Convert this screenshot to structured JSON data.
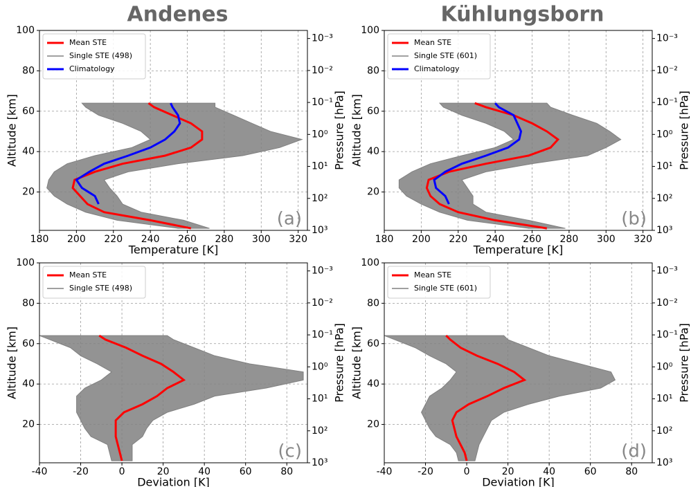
{
  "chart_data": [
    {
      "type": "line",
      "title": "Andenes",
      "annotation": "(a)",
      "xlabel": "Temperature [K]",
      "ylabel": "Altitude [km]",
      "y2label": "Pressure [hPa]",
      "xlim": [
        180,
        325
      ],
      "xticks": [
        180,
        200,
        220,
        240,
        260,
        280,
        300,
        320
      ],
      "ylim": [
        1,
        100
      ],
      "yticks": [
        20,
        40,
        60,
        80,
        100
      ],
      "y2lim": [
        1000,
        0.00056
      ],
      "y2log": true,
      "y2ticks": [
        {
          "value": 0.001,
          "label": "10⁻³"
        },
        {
          "value": 0.01,
          "label": "10⁻²"
        },
        {
          "value": 0.1,
          "label": "10⁻¹"
        },
        {
          "value": 1,
          "label": "10⁰"
        },
        {
          "value": 10,
          "label": "10¹"
        },
        {
          "value": 100,
          "label": "10²"
        },
        {
          "value": 1000,
          "label": "10³"
        }
      ],
      "grid": true,
      "legend": "upper left",
      "y": [
        2,
        6,
        10,
        14,
        18,
        22,
        26,
        30,
        34,
        38,
        42,
        46,
        50,
        54,
        58,
        62,
        64
      ],
      "series": [
        {
          "name": "Mean STE",
          "color": "#ff0000",
          "values": [
            262,
            240,
            215,
            206,
            202,
            198,
            199,
            210,
            225,
            248,
            262,
            268,
            268,
            262,
            252,
            242,
            239
          ]
        },
        {
          "name": "Single STE (498)",
          "color": "#808080",
          "values": [
            255,
            222,
            205,
            195,
            188,
            184,
            185,
            188,
            195,
            210,
            230,
            240,
            235,
            225,
            212,
            205,
            203
          ],
          "values_upper": [
            272,
            258,
            235,
            225,
            222,
            218,
            215,
            228,
            255,
            290,
            310,
            322,
            305,
            295,
            285,
            275,
            275
          ]
        },
        {
          "name": "Climatology",
          "color": "#0000ff",
          "values": [
            null,
            null,
            null,
            212,
            210,
            203,
            200,
            207,
            215,
            228,
            240,
            248,
            253,
            256,
            255,
            252,
            251
          ]
        }
      ]
    },
    {
      "type": "line",
      "title": "Kühlungsborn",
      "annotation": "(b)",
      "xlabel": "Temperature [K]",
      "ylabel": "Altitude [km]",
      "y2label": "Pressure [hPa]",
      "xlim": [
        180,
        325
      ],
      "xticks": [
        180,
        200,
        220,
        240,
        260,
        280,
        300,
        320
      ],
      "ylim": [
        1,
        100
      ],
      "yticks": [
        20,
        40,
        60,
        80,
        100
      ],
      "y2lim": [
        1000,
        0.00056
      ],
      "y2log": true,
      "y2ticks": [
        {
          "value": 0.001,
          "label": "10⁻³"
        },
        {
          "value": 0.01,
          "label": "10⁻²"
        },
        {
          "value": 0.1,
          "label": "10⁻¹"
        },
        {
          "value": 1,
          "label": "10⁰"
        },
        {
          "value": 10,
          "label": "10¹"
        },
        {
          "value": 100,
          "label": "10²"
        },
        {
          "value": 1000,
          "label": "10³"
        }
      ],
      "grid": true,
      "legend": "upper left",
      "y": [
        2,
        6,
        10,
        14,
        18,
        22,
        26,
        30,
        34,
        38,
        42,
        46,
        50,
        54,
        58,
        62,
        64
      ],
      "series": [
        {
          "name": "Mean STE",
          "color": "#ff0000",
          "values": [
            268,
            240,
            220,
            210,
            205,
            203,
            204,
            215,
            235,
            258,
            270,
            274,
            268,
            260,
            250,
            235,
            229
          ]
        },
        {
          "name": "Single STE (601)",
          "color": "#808080",
          "values": [
            258,
            225,
            210,
            200,
            192,
            188,
            188,
            195,
            205,
            222,
            240,
            250,
            245,
            235,
            222,
            212,
            210
          ],
          "values_upper": [
            278,
            258,
            235,
            228,
            228,
            225,
            222,
            235,
            260,
            290,
            300,
            308,
            302,
            295,
            282,
            270,
            268
          ]
        },
        {
          "name": "Climatology",
          "color": "#0000ff",
          "values": [
            null,
            null,
            null,
            215,
            213,
            208,
            207,
            213,
            222,
            235,
            247,
            253,
            254,
            252,
            250,
            242,
            240
          ]
        }
      ]
    },
    {
      "type": "line",
      "annotation": "(c)",
      "xlabel": "Deviation [K]",
      "ylabel": "Altitude [km]",
      "y2label": "Pressure [hPa]",
      "xlim": [
        -40,
        90
      ],
      "xticks": [
        -40,
        -20,
        0,
        20,
        40,
        60,
        80
      ],
      "ylim": [
        1,
        100
      ],
      "yticks": [
        20,
        40,
        60,
        80,
        100
      ],
      "y2lim": [
        1000,
        0.00056
      ],
      "y2log": true,
      "y2ticks": [
        {
          "value": 0.001,
          "label": "10⁻³"
        },
        {
          "value": 0.01,
          "label": "10⁻²"
        },
        {
          "value": 0.1,
          "label": "10⁻¹"
        },
        {
          "value": 1,
          "label": "10⁰"
        },
        {
          "value": 10,
          "label": "10¹"
        },
        {
          "value": 100,
          "label": "10²"
        },
        {
          "value": 1000,
          "label": "10³"
        }
      ],
      "grid": true,
      "legend": "upper left",
      "y": [
        2,
        6,
        10,
        14,
        18,
        22,
        26,
        30,
        34,
        38,
        42,
        46,
        50,
        54,
        58,
        62,
        64
      ],
      "series": [
        {
          "name": "Mean STE",
          "color": "#ff0000",
          "values": [
            0,
            -1,
            -2,
            -3,
            -3,
            -3,
            1,
            10,
            17,
            22,
            30,
            25,
            19,
            10,
            2,
            -8,
            -11
          ]
        },
        {
          "name": "Single STE (498)",
          "color": "#808080",
          "values": [
            -5,
            -6,
            -7,
            -15,
            -18,
            -20,
            -22,
            -22,
            -22,
            -18,
            -10,
            -5,
            -12,
            -20,
            -25,
            -35,
            -40
          ],
          "values_upper": [
            5,
            5,
            5,
            10,
            12,
            15,
            22,
            35,
            45,
            70,
            88,
            88,
            62,
            45,
            35,
            25,
            22
          ]
        }
      ]
    },
    {
      "type": "line",
      "annotation": "(d)",
      "xlabel": "Deviation [K]",
      "ylabel": "Altitude [km]",
      "y2label": "Pressure [hPa]",
      "xlim": [
        -40,
        90
      ],
      "xticks": [
        -40,
        -20,
        0,
        20,
        40,
        60,
        80
      ],
      "ylim": [
        1,
        100
      ],
      "yticks": [
        20,
        40,
        60,
        80,
        100
      ],
      "y2lim": [
        1000,
        0.00056
      ],
      "y2log": true,
      "y2ticks": [
        {
          "value": 0.001,
          "label": "10⁻³"
        },
        {
          "value": 0.01,
          "label": "10⁻²"
        },
        {
          "value": 0.1,
          "label": "10⁻¹"
        },
        {
          "value": 1,
          "label": "10⁰"
        },
        {
          "value": 10,
          "label": "10¹"
        },
        {
          "value": 100,
          "label": "10²"
        },
        {
          "value": 1000,
          "label": "10³"
        }
      ],
      "grid": true,
      "legend": "upper left",
      "y": [
        2,
        6,
        10,
        14,
        18,
        22,
        26,
        30,
        34,
        38,
        42,
        46,
        50,
        54,
        58,
        62,
        64
      ],
      "series": [
        {
          "name": "Mean STE",
          "color": "#ff0000",
          "values": [
            0,
            -1,
            -3,
            -5,
            -6,
            -7,
            -5,
            1,
            10,
            18,
            28,
            23,
            15,
            5,
            -3,
            -8,
            -10
          ]
        },
        {
          "name": "Single STE (601)",
          "color": "#808080",
          "values": [
            -4,
            -5,
            -8,
            -15,
            -18,
            -20,
            -22,
            -20,
            -18,
            -12,
            -8,
            -5,
            -10,
            -18,
            -25,
            -35,
            -40
          ],
          "values_upper": [
            4,
            5,
            6,
            8,
            10,
            12,
            18,
            30,
            45,
            65,
            72,
            70,
            55,
            40,
            30,
            20,
            18
          ]
        }
      ]
    }
  ]
}
